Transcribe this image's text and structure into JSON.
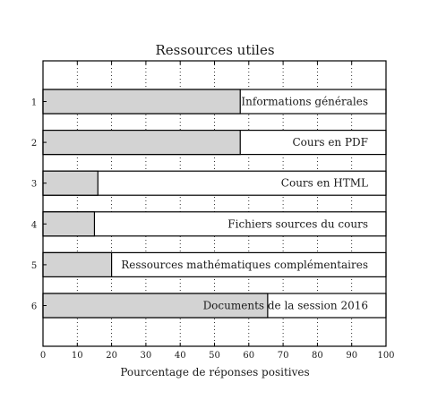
{
  "chart_data": {
    "type": "bar",
    "orientation": "horizontal",
    "title": "Ressources utiles",
    "xlabel": "Pourcentage de réponses positives",
    "ylabel": "",
    "xlim": [
      0,
      100
    ],
    "xticks": [
      0,
      10,
      20,
      30,
      40,
      50,
      60,
      70,
      80,
      90,
      100
    ],
    "grid": "vertical dotted",
    "categories": [
      "1",
      "2",
      "3",
      "4",
      "5",
      "6"
    ],
    "labels": [
      "Informations générales",
      "Cours en PDF",
      "Cours en HTML",
      "Fichiers sources du cours",
      "Ressources mathématiques complémentaires",
      "Documents de la session 2016"
    ],
    "values": [
      57.5,
      57.5,
      16,
      15,
      20,
      65.5
    ],
    "colors": {
      "filled": "#d3d3d3",
      "background": "#ffffff",
      "edge": "#000000"
    }
  }
}
